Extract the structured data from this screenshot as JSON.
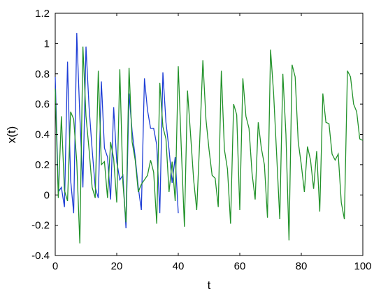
{
  "chart_data": {
    "type": "line",
    "title": "",
    "xlabel": "t",
    "ylabel": "x(t)",
    "xlim": [
      0,
      100
    ],
    "ylim": [
      -0.4,
      1.2
    ],
    "xticks": [
      0,
      20,
      40,
      60,
      80,
      100
    ],
    "xtick_labels": [
      "0",
      "20",
      "40",
      "60",
      "80",
      "100"
    ],
    "yticks": [
      -0.4,
      -0.2,
      0,
      0.2,
      0.4,
      0.6,
      0.8,
      1,
      1.2
    ],
    "ytick_labels": [
      "-0.4",
      "-0.2",
      "0",
      "0.2",
      "0.4",
      "0.6",
      "0.8",
      "1",
      "1.2"
    ],
    "grid": false,
    "series": [
      {
        "color": "#1f3fd6",
        "x": [
          0,
          1,
          2,
          3,
          4,
          5,
          6,
          7,
          8,
          9,
          10,
          11,
          12,
          13,
          14,
          15,
          16,
          17,
          18,
          19,
          20,
          21,
          22,
          23,
          24,
          25,
          26,
          27,
          28,
          29,
          30,
          31,
          32,
          33,
          34,
          35,
          36,
          37,
          38,
          39,
          40
        ],
        "y": [
          0.78,
          0.02,
          0.05,
          -0.08,
          0.88,
          0.1,
          -0.12,
          1.07,
          0.52,
          0.05,
          0.98,
          0.58,
          0.3,
          0.05,
          -0.02,
          0.75,
          0.31,
          0.25,
          -0.03,
          0.58,
          0.22,
          0.1,
          0.13,
          -0.22,
          0.67,
          0.42,
          0.25,
          0.05,
          -0.1,
          0.77,
          0.56,
          0.44,
          0.44,
          0.33,
          -0.12,
          0.81,
          0.48,
          0.3,
          0.08,
          0.25,
          -0.12
        ]
      },
      {
        "color": "#22922a",
        "x": [
          0,
          1,
          2,
          3,
          4,
          5,
          6,
          7,
          8,
          9,
          10,
          11,
          12,
          13,
          14,
          15,
          16,
          17,
          18,
          19,
          20,
          21,
          22,
          23,
          24,
          25,
          26,
          27,
          28,
          29,
          30,
          31,
          32,
          33,
          34,
          35,
          36,
          37,
          38,
          39,
          40,
          41,
          42,
          43,
          44,
          45,
          46,
          47,
          48,
          49,
          50,
          51,
          52,
          53,
          54,
          55,
          56,
          57,
          58,
          59,
          60,
          61,
          62,
          63,
          64,
          65,
          66,
          67,
          68,
          69,
          70,
          71,
          72,
          73,
          74,
          75,
          76,
          77,
          78,
          79,
          80,
          81,
          82,
          83,
          84,
          85,
          86,
          87,
          88,
          89,
          90,
          91,
          92,
          93,
          94,
          95,
          96,
          97,
          98,
          99,
          100
        ],
        "y": [
          0.7,
          -0.02,
          0.52,
          0.03,
          -0.04,
          0.55,
          0.5,
          0.22,
          -0.32,
          0.98,
          0.52,
          0.3,
          0.05,
          -0.02,
          0.82,
          0.2,
          0.22,
          -0.02,
          0.35,
          0.24,
          -0.05,
          0.83,
          0.08,
          -0.18,
          0.84,
          0.35,
          0.23,
          0.02,
          0.07,
          0.1,
          0.13,
          0.23,
          0.15,
          -0.19,
          0.74,
          0.45,
          0.37,
          0.02,
          0.22,
          -0.04,
          0.85,
          0.3,
          -0.21,
          0.69,
          0.4,
          0.1,
          -0.1,
          0.37,
          0.89,
          0.5,
          0.3,
          0.13,
          0.11,
          -0.08,
          0.82,
          0.3,
          0.17,
          -0.19,
          0.6,
          0.53,
          -0.1,
          0.77,
          0.52,
          0.44,
          0.14,
          -0.03,
          0.48,
          0.31,
          0.2,
          -0.15,
          0.96,
          0.67,
          0.26,
          -0.16,
          0.8,
          0.4,
          -0.3,
          0.86,
          0.78,
          0.35,
          0.2,
          0.02,
          0.32,
          0.23,
          0.04,
          0.29,
          -0.11,
          0.67,
          0.48,
          0.47,
          0.27,
          0.23,
          0.27,
          -0.05,
          -0.16,
          0.82,
          0.78,
          0.6,
          0.55,
          0.37,
          0.36
        ]
      }
    ]
  }
}
